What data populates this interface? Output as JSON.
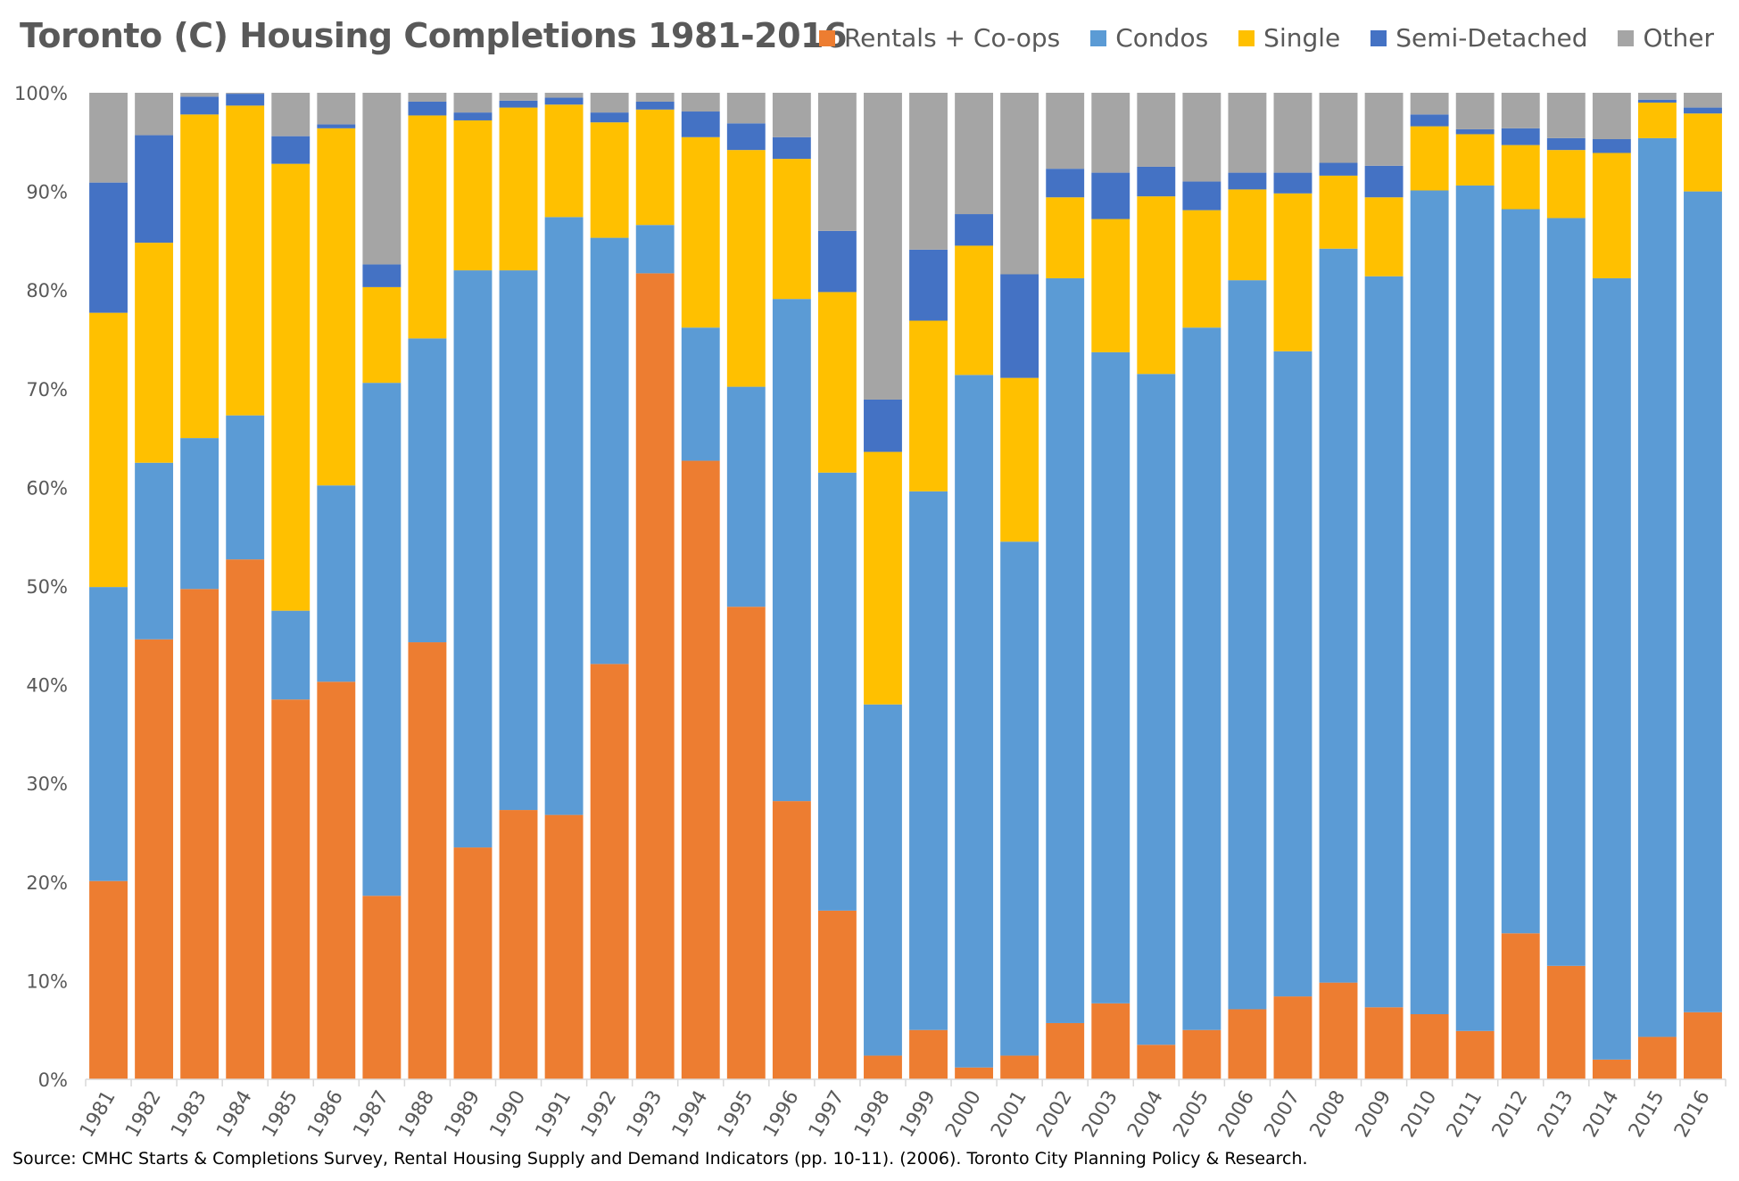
{
  "chart_data": {
    "type": "bar",
    "stacked": true,
    "title": "Toronto (C) Housing Completions 1981-2016",
    "xlabel": "",
    "ylabel": "",
    "ylim": [
      0,
      100
    ],
    "yticks": [
      "0%",
      "10%",
      "20%",
      "30%",
      "40%",
      "50%",
      "60%",
      "70%",
      "80%",
      "90%",
      "100%"
    ],
    "legend_position": "top-right",
    "categories": [
      "1981",
      "1982",
      "1983",
      "1984",
      "1985",
      "1986",
      "1987",
      "1988",
      "1989",
      "1990",
      "1991",
      "1992",
      "1993",
      "1994",
      "1995",
      "1996",
      "1997",
      "1998",
      "1999",
      "2000",
      "2001",
      "2002",
      "2003",
      "2004",
      "2005",
      "2006",
      "2007",
      "2008",
      "2009",
      "2010",
      "2011",
      "2012",
      "2013",
      "2014",
      "2015",
      "2016"
    ],
    "series": [
      {
        "name": "Rentals + Co-ops",
        "color": "#ED7D31",
        "values": [
          20.1,
          44.6,
          49.7,
          52.7,
          38.5,
          40.3,
          18.6,
          44.3,
          23.5,
          27.3,
          26.8,
          42.1,
          81.7,
          62.7,
          47.9,
          28.2,
          17.1,
          2.4,
          5.0,
          1.2,
          2.4,
          5.7,
          7.7,
          3.5,
          5.0,
          7.1,
          8.4,
          9.8,
          7.3,
          6.6,
          4.9,
          14.8,
          11.5,
          2.0,
          4.3,
          6.8
        ]
      },
      {
        "name": "Condos",
        "color": "#5B9BD5",
        "values": [
          29.8,
          17.9,
          15.3,
          14.6,
          9.0,
          19.9,
          52.0,
          30.8,
          58.5,
          54.7,
          60.6,
          43.2,
          4.9,
          13.5,
          22.3,
          50.9,
          44.4,
          35.6,
          54.6,
          70.2,
          52.1,
          75.5,
          66.0,
          68.0,
          71.2,
          73.9,
          65.4,
          74.4,
          74.1,
          83.5,
          85.7,
          73.4,
          75.8,
          79.2,
          91.1,
          83.2
        ]
      },
      {
        "name": "Single",
        "color": "#FFC000",
        "values": [
          27.8,
          22.3,
          32.8,
          31.4,
          45.3,
          36.2,
          9.7,
          22.6,
          15.2,
          16.5,
          11.4,
          11.7,
          11.7,
          19.3,
          24.0,
          14.2,
          18.3,
          25.6,
          17.3,
          13.1,
          16.6,
          8.2,
          13.5,
          18.0,
          11.9,
          9.2,
          16.0,
          7.4,
          8.0,
          6.5,
          5.2,
          6.5,
          6.9,
          12.7,
          3.6,
          7.9
        ]
      },
      {
        "name": "Semi-Detached",
        "color": "#4472C4",
        "values": [
          13.2,
          10.9,
          1.8,
          1.2,
          2.8,
          0.4,
          2.3,
          1.4,
          0.8,
          0.7,
          0.7,
          1.0,
          0.8,
          2.6,
          2.7,
          2.2,
          6.2,
          5.3,
          7.2,
          3.2,
          10.5,
          2.9,
          4.7,
          3.0,
          2.9,
          1.7,
          2.1,
          1.3,
          3.2,
          1.2,
          0.5,
          1.7,
          1.2,
          1.4,
          0.3,
          0.6
        ]
      },
      {
        "name": "Other",
        "color": "#A5A5A5",
        "values": [
          9.1,
          4.3,
          0.4,
          0.1,
          4.4,
          3.2,
          17.4,
          0.9,
          2.0,
          0.8,
          0.5,
          2.0,
          0.9,
          1.9,
          3.1,
          4.5,
          14.0,
          31.1,
          15.9,
          12.3,
          18.4,
          7.7,
          8.1,
          7.5,
          9.0,
          8.1,
          8.1,
          7.1,
          7.4,
          2.2,
          3.7,
          3.6,
          4.6,
          4.7,
          0.7,
          1.5
        ]
      }
    ]
  },
  "source": "Source: CMHC Starts & Completions Survey, Rental Housing Supply and Demand Indicators (pp. 10-11). (2006). Toronto City Planning Policy & Research."
}
